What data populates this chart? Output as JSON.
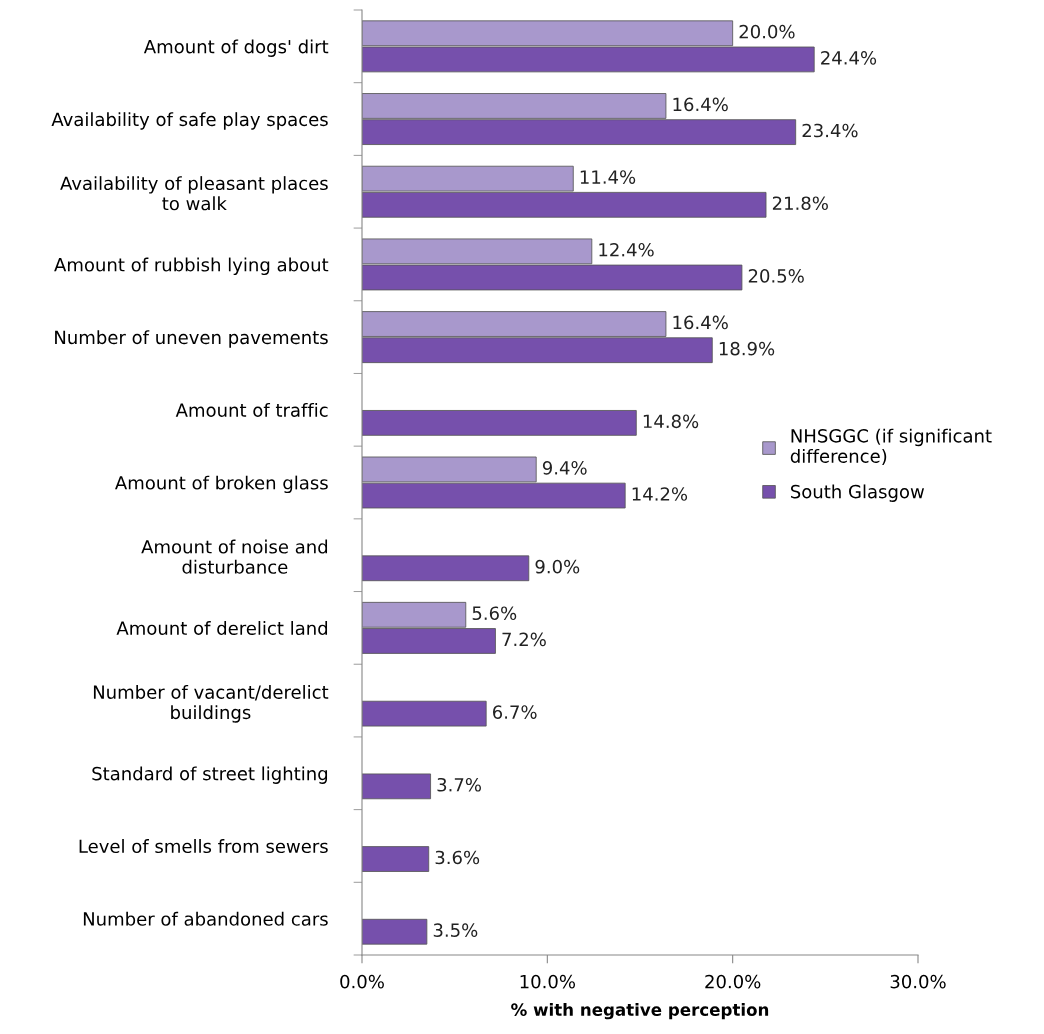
{
  "chart_data": {
    "type": "bar",
    "orientation": "horizontal",
    "xlabel": "% with negative perception",
    "categories": [
      "Amount of dogs' dirt",
      "Availability of safe play spaces",
      "Availability of pleasant places\nto walk",
      "Amount of rubbish lying about",
      "Number of uneven pavements",
      "Amount of traffic",
      "Amount of broken glass",
      "Amount of noise and\ndisturbance",
      "Amount of derelict land",
      "Number of vacant/derelict\nbuildings",
      "Standard of street lighting",
      "Level of smells from sewers",
      "Number of abandoned cars"
    ],
    "series": [
      {
        "name": "NHSGGC (if significant\ndifference)",
        "color": "#a898cc",
        "values": [
          20.0,
          16.4,
          11.4,
          12.4,
          16.4,
          null,
          9.4,
          null,
          5.6,
          null,
          null,
          null,
          null
        ],
        "value_labels": [
          "20.0%",
          "16.4%",
          "11.4%",
          "12.4%",
          "16.4%",
          null,
          "9.4%",
          null,
          "5.6%",
          null,
          null,
          null,
          null
        ]
      },
      {
        "name": "South Glasgow",
        "color": "#7650ac",
        "values": [
          24.4,
          23.4,
          21.8,
          20.5,
          18.9,
          14.8,
          14.2,
          9.0,
          7.2,
          6.7,
          3.7,
          3.6,
          3.5
        ],
        "value_labels": [
          "24.4%",
          "23.4%",
          "21.8%",
          "20.5%",
          "18.9%",
          "14.8%",
          "14.2%",
          "9.0%",
          "7.2%",
          "6.7%",
          "3.7%",
          "3.6%",
          "3.5%"
        ]
      }
    ],
    "xlim": [
      0,
      30
    ],
    "xticks": [
      {
        "value": 0,
        "label": "0.0%"
      },
      {
        "value": 10,
        "label": "10.0%"
      },
      {
        "value": 20,
        "label": "20.0%"
      },
      {
        "value": 30,
        "label": "30.0%"
      }
    ],
    "grid": false,
    "legend": "right"
  }
}
